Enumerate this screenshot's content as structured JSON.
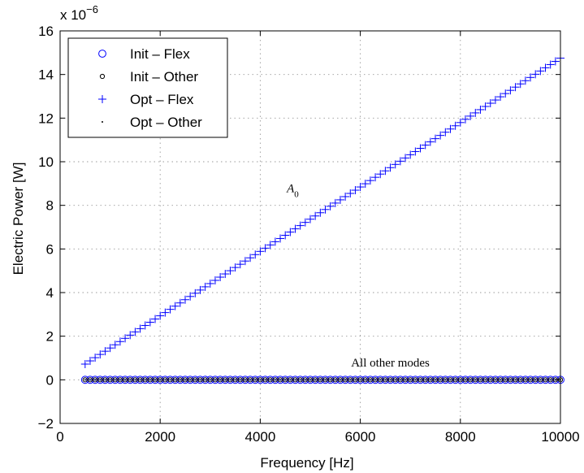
{
  "chart_data": {
    "type": "scatter",
    "xlabel": "Frequency [Hz]",
    "ylabel": "Electric Power [W]",
    "y_exponent_base": "x 10",
    "y_exponent_power": "−6",
    "xlim": [
      0,
      10000
    ],
    "ylim": [
      -2,
      16
    ],
    "x_ticks": [
      0,
      2000,
      4000,
      6000,
      8000,
      10000
    ],
    "y_ticks": [
      -2,
      0,
      2,
      4,
      6,
      8,
      10,
      12,
      14,
      16
    ],
    "x_tick_labels": [
      "0",
      "2000",
      "4000",
      "6000",
      "8000",
      "10000"
    ],
    "y_tick_labels": [
      "−2",
      "0",
      "2",
      "4",
      "6",
      "8",
      "10",
      "12",
      "14",
      "16"
    ],
    "grid": true,
    "legend_position": "top-left",
    "series": [
      {
        "name": "Init – Flex",
        "marker": "circle-large",
        "color": "#0000ff",
        "x_range": [
          500,
          10000
        ],
        "x_step": 100,
        "y_start": 0.0,
        "y_end": 0.0
      },
      {
        "name": "Init – Other",
        "marker": "circle-small",
        "color": "#000000",
        "x_range": [
          500,
          10000
        ],
        "x_step": 100,
        "y_start": 0.0,
        "y_end": 0.0
      },
      {
        "name": "Opt – Flex",
        "marker": "plus",
        "color": "#0000ff",
        "x_range": [
          500,
          10000
        ],
        "x_step": 100,
        "y_start": 0.72,
        "y_end": 14.75
      },
      {
        "name": "Opt – Other",
        "marker": "dot",
        "color": "#000000",
        "x_range": [
          500,
          10000
        ],
        "x_step": 100,
        "y_start": 0.0,
        "y_end": 0.0
      }
    ],
    "annotations": [
      {
        "text": "A",
        "subscript": "0",
        "x": 4650,
        "y": 8.6
      },
      {
        "text": "All other modes",
        "x": 6600,
        "y": 0.6
      }
    ]
  }
}
